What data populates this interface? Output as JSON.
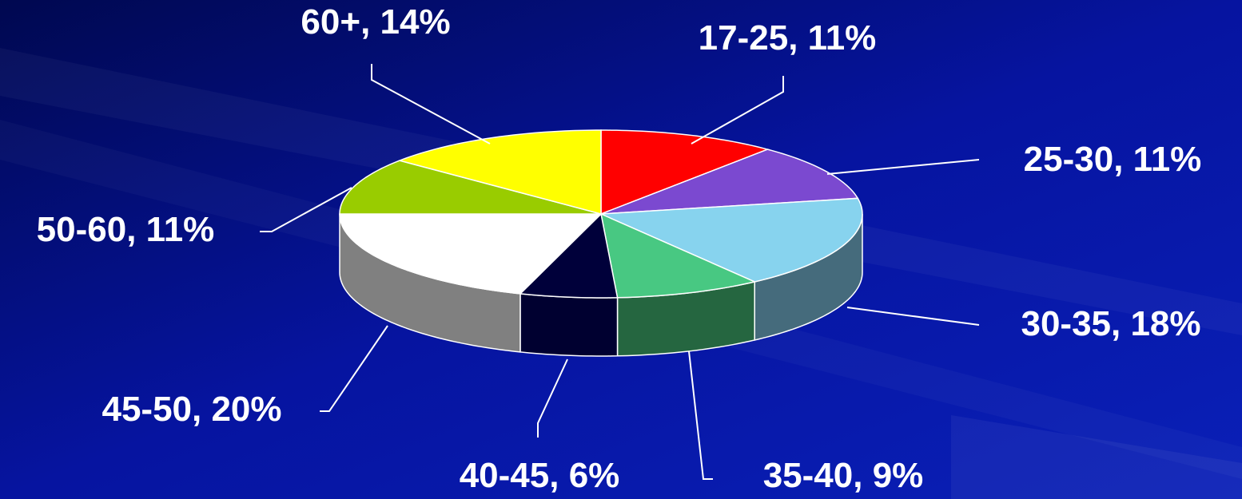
{
  "chart_data": {
    "type": "pie",
    "categories": [
      "17-25",
      "25-30",
      "30-35",
      "35-40",
      "40-45",
      "45-50",
      "50-60",
      "60+"
    ],
    "values": [
      11,
      11,
      18,
      9,
      6,
      20,
      11,
      14
    ],
    "value_labels": [
      ", 11%",
      ", 11%",
      ", 18%",
      ", 9%",
      ", 6%",
      ", 20%",
      ", 11%",
      ", 14%"
    ],
    "colors": [
      "#ff0000",
      "#7b49d0",
      "#87d3ee",
      "#48c882",
      "#00003a",
      "#ffffff",
      "#99cc00",
      "#ffff00"
    ],
    "side_colors": [
      "#990000",
      "#4a2c7d",
      "#456b7c",
      "#256640",
      "#000030",
      "#808080",
      "#5c7a00",
      "#999900"
    ]
  }
}
